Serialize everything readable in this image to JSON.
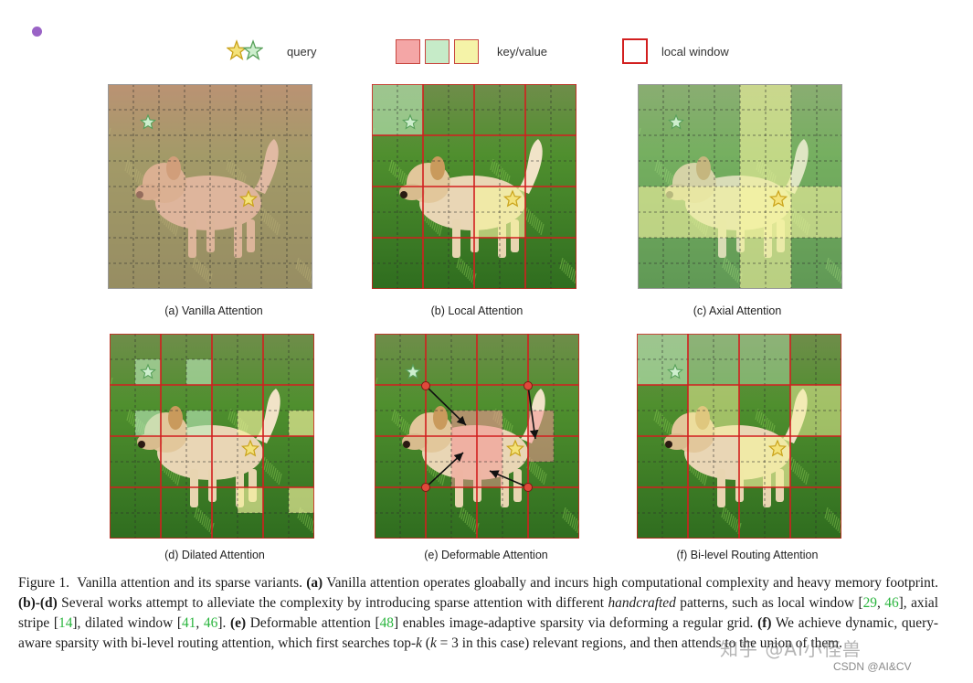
{
  "legend": {
    "query_label": "query",
    "keyvalue_label": "key/value",
    "window_label": "local window"
  },
  "colors": {
    "red": "#f4a6a6",
    "green": "#b6e6b9",
    "yellow": "#f2f09a",
    "window": "#d21f1f",
    "ref": "#2ab53e"
  },
  "panels": [
    {
      "id": "a",
      "caption": "(a) Vanilla Attention"
    },
    {
      "id": "b",
      "caption": "(b) Local Attention"
    },
    {
      "id": "c",
      "caption": "(c) Axial Attention"
    },
    {
      "id": "d",
      "caption": "(d) Dilated Attention"
    },
    {
      "id": "e",
      "caption": "(e) Deformable Attention"
    },
    {
      "id": "f",
      "caption": "(f) Bi-level Routing Attention"
    }
  ],
  "caption": {
    "label": "Figure 1.",
    "s1": "Vanilla attention and its sparse variants.",
    "a_tag": "(a)",
    "s2": "Vanilla attention operates gloabally and incurs high computational complexity and heavy memory footprint.",
    "bd_tag": "(b)-(d)",
    "s3": "Several works attempt to alleviate the complexity by introducing sparse attention with different",
    "s3_it": "handcrafted",
    "s4": "patterns, such as local window [",
    "ref29": "29",
    "ref46a": "46",
    "s5": "], axial stripe [",
    "ref14": "14",
    "s6": "], dilated window [",
    "ref41": "41",
    "ref46b": "46",
    "s7": "].",
    "e_tag": "(e)",
    "s8": "Deformable attention [",
    "ref48": "48",
    "s9": "] enables image-adaptive sparsity via deforming a regular grid.",
    "f_tag": "(f)",
    "s10": "We achieve dynamic, query-aware sparsity with bi-level routing attention, which first searches top-",
    "k_it": "k",
    "s11": "(",
    "k_it2": "k",
    "s12": "= 3 in this case) relevant regions, and then attends to the union of them."
  },
  "watermark": "知乎 @AI小怪兽",
  "csdn": "CSDN @AI&CV"
}
